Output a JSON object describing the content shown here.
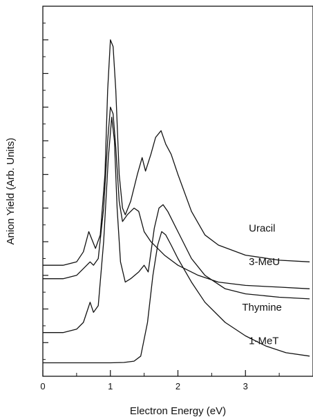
{
  "chart_data": {
    "type": "line",
    "xlabel": "Electron Energy (eV)",
    "ylabel": "Anion Yield (Arb. Units)",
    "xlim": [
      0,
      4
    ],
    "ylim": [
      0,
      11
    ],
    "x_ticks": [
      0,
      1,
      2,
      3
    ],
    "x_tick_labels": [
      "0",
      "1",
      "2",
      "3"
    ],
    "y_major_ticks": [
      1,
      2,
      3,
      4,
      5,
      6,
      7,
      8,
      9,
      10
    ],
    "grid": false,
    "series": [
      {
        "name": "Uracil",
        "points": [
          [
            0.0,
            3.3
          ],
          [
            0.3,
            3.3
          ],
          [
            0.5,
            3.4
          ],
          [
            0.6,
            3.7
          ],
          [
            0.68,
            4.3
          ],
          [
            0.72,
            4.1
          ],
          [
            0.78,
            3.8
          ],
          [
            0.85,
            4.2
          ],
          [
            0.92,
            6.0
          ],
          [
            0.96,
            8.5
          ],
          [
            1.0,
            10.0
          ],
          [
            1.04,
            9.8
          ],
          [
            1.08,
            8.5
          ],
          [
            1.13,
            6.0
          ],
          [
            1.18,
            5.0
          ],
          [
            1.22,
            4.8
          ],
          [
            1.3,
            5.2
          ],
          [
            1.4,
            6.0
          ],
          [
            1.47,
            6.5
          ],
          [
            1.52,
            6.1
          ],
          [
            1.6,
            6.6
          ],
          [
            1.67,
            7.1
          ],
          [
            1.75,
            7.3
          ],
          [
            1.82,
            6.9
          ],
          [
            1.9,
            6.6
          ],
          [
            2.0,
            6.0
          ],
          [
            2.2,
            4.9
          ],
          [
            2.4,
            4.2
          ],
          [
            2.6,
            3.9
          ],
          [
            3.0,
            3.6
          ],
          [
            3.5,
            3.45
          ],
          [
            3.95,
            3.4
          ]
        ]
      },
      {
        "name": "3-MeU",
        "points": [
          [
            0.0,
            2.9
          ],
          [
            0.3,
            2.9
          ],
          [
            0.5,
            3.0
          ],
          [
            0.6,
            3.2
          ],
          [
            0.7,
            3.4
          ],
          [
            0.75,
            3.3
          ],
          [
            0.82,
            3.5
          ],
          [
            0.9,
            5.0
          ],
          [
            0.96,
            7.0
          ],
          [
            1.0,
            8.0
          ],
          [
            1.04,
            7.8
          ],
          [
            1.08,
            6.8
          ],
          [
            1.13,
            5.2
          ],
          [
            1.18,
            4.6
          ],
          [
            1.25,
            4.8
          ],
          [
            1.35,
            5.0
          ],
          [
            1.42,
            4.9
          ],
          [
            1.5,
            4.3
          ],
          [
            1.6,
            4.0
          ],
          [
            1.7,
            3.8
          ],
          [
            1.8,
            3.6
          ],
          [
            2.0,
            3.3
          ],
          [
            2.3,
            3.0
          ],
          [
            2.6,
            2.8
          ],
          [
            3.0,
            2.7
          ],
          [
            3.5,
            2.65
          ],
          [
            3.95,
            2.6
          ]
        ]
      },
      {
        "name": "Thymine",
        "points": [
          [
            0.0,
            1.3
          ],
          [
            0.3,
            1.3
          ],
          [
            0.5,
            1.4
          ],
          [
            0.6,
            1.6
          ],
          [
            0.7,
            2.2
          ],
          [
            0.75,
            1.9
          ],
          [
            0.82,
            2.1
          ],
          [
            0.9,
            4.0
          ],
          [
            0.97,
            6.5
          ],
          [
            1.02,
            7.7
          ],
          [
            1.06,
            7.0
          ],
          [
            1.1,
            5.0
          ],
          [
            1.15,
            3.4
          ],
          [
            1.22,
            2.8
          ],
          [
            1.3,
            2.9
          ],
          [
            1.42,
            3.1
          ],
          [
            1.5,
            3.3
          ],
          [
            1.56,
            3.1
          ],
          [
            1.65,
            4.4
          ],
          [
            1.72,
            5.0
          ],
          [
            1.78,
            5.1
          ],
          [
            1.85,
            4.9
          ],
          [
            2.0,
            4.3
          ],
          [
            2.2,
            3.5
          ],
          [
            2.4,
            3.0
          ],
          [
            2.7,
            2.6
          ],
          [
            3.0,
            2.45
          ],
          [
            3.5,
            2.35
          ],
          [
            3.95,
            2.3
          ]
        ]
      },
      {
        "name": "1-MeT",
        "points": [
          [
            0.0,
            0.4
          ],
          [
            0.5,
            0.4
          ],
          [
            1.0,
            0.4
          ],
          [
            1.2,
            0.41
          ],
          [
            1.35,
            0.45
          ],
          [
            1.45,
            0.6
          ],
          [
            1.55,
            1.6
          ],
          [
            1.63,
            3.0
          ],
          [
            1.7,
            3.9
          ],
          [
            1.76,
            4.3
          ],
          [
            1.82,
            4.2
          ],
          [
            1.9,
            3.9
          ],
          [
            2.0,
            3.5
          ],
          [
            2.2,
            2.8
          ],
          [
            2.4,
            2.2
          ],
          [
            2.7,
            1.6
          ],
          [
            3.0,
            1.2
          ],
          [
            3.3,
            0.9
          ],
          [
            3.6,
            0.7
          ],
          [
            3.95,
            0.6
          ]
        ]
      }
    ],
    "series_labels": [
      {
        "text": "Uracil",
        "x": 3.05,
        "y": 4.3
      },
      {
        "text": "3-MeU",
        "x": 3.05,
        "y": 3.3
      },
      {
        "text": "Thymine",
        "x": 2.95,
        "y": 1.95
      },
      {
        "text": "1-MeT",
        "x": 3.05,
        "y": 0.95
      }
    ]
  }
}
